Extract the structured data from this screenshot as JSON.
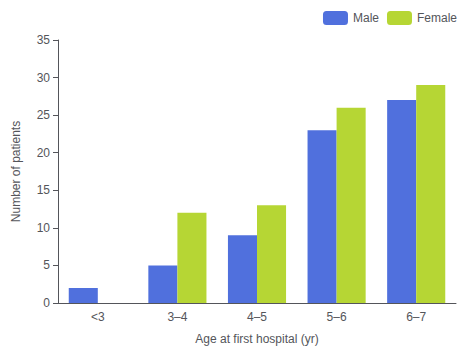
{
  "chart_data": {
    "type": "bar",
    "categories": [
      "<3",
      "3–4",
      "4–5",
      "5–6",
      "6–7"
    ],
    "series": [
      {
        "name": "Male",
        "values": [
          2,
          5,
          9,
          23,
          27
        ]
      },
      {
        "name": "Female",
        "values": [
          0,
          12,
          13,
          26,
          29
        ]
      }
    ],
    "xlabel": "Age at first hospital (yr)",
    "ylabel": "Number of patients",
    "ylim": [
      0,
      35
    ],
    "yticks": [
      0,
      5,
      10,
      15,
      20,
      25,
      30,
      35
    ],
    "grid": false,
    "legend": "upper right"
  }
}
